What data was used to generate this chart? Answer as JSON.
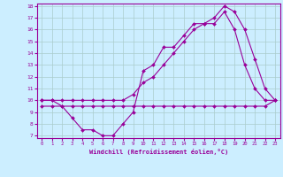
{
  "x": [
    0,
    1,
    2,
    3,
    4,
    5,
    6,
    7,
    8,
    9,
    10,
    11,
    12,
    13,
    14,
    15,
    16,
    17,
    18,
    19,
    20,
    21,
    22,
    23
  ],
  "line1": [
    10,
    10,
    9.5,
    8.5,
    7.5,
    7.5,
    7,
    7,
    8,
    9,
    12.5,
    13,
    14.5,
    14.5,
    15.5,
    16.5,
    16.5,
    16.5,
    17.5,
    16,
    13,
    11,
    10,
    10
  ],
  "line2": [
    10,
    10,
    10,
    10,
    10,
    10,
    10,
    10,
    10,
    10.5,
    11.5,
    12,
    13,
    14,
    15,
    16,
    16.5,
    17,
    18,
    17.5,
    16,
    13.5,
    11,
    10
  ],
  "line3": [
    9.5,
    9.5,
    9.5,
    9.5,
    9.5,
    9.5,
    9.5,
    9.5,
    9.5,
    9.5,
    9.5,
    9.5,
    9.5,
    9.5,
    9.5,
    9.5,
    9.5,
    9.5,
    9.5,
    9.5,
    9.5,
    9.5,
    9.5,
    10
  ],
  "line_color": "#990099",
  "bg_color": "#cceeff",
  "grid_color": "#aacccc",
  "xlabel": "Windchill (Refroidissement éolien,°C)",
  "xlim": [
    -0.5,
    23.5
  ],
  "ylim": [
    6.8,
    18.2
  ],
  "yticks": [
    7,
    8,
    9,
    10,
    11,
    12,
    13,
    14,
    15,
    16,
    17,
    18
  ],
  "xticks": [
    0,
    1,
    2,
    3,
    4,
    5,
    6,
    7,
    8,
    9,
    10,
    11,
    12,
    13,
    14,
    15,
    16,
    17,
    18,
    19,
    20,
    21,
    22,
    23
  ],
  "markersize": 2,
  "linewidth": 0.8
}
